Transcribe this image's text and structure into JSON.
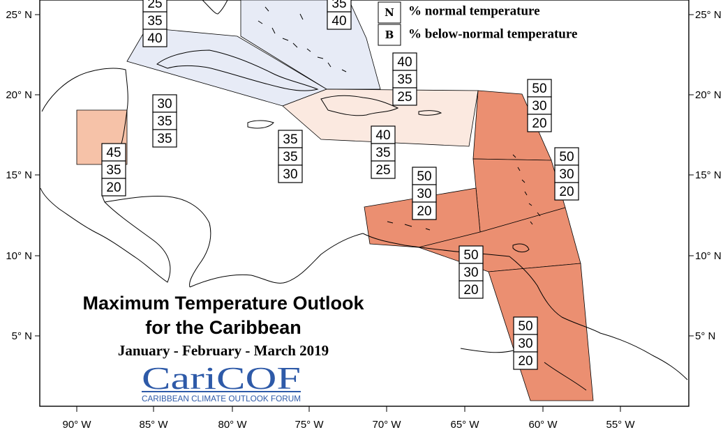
{
  "title": {
    "line1": "Maximum Temperature Outlook",
    "line2": "for the Caribbean",
    "period": "January - February - March 2019"
  },
  "logo": {
    "name": "CariCOF",
    "subtitle": "CARIBBEAN CLIMATE OUTLOOK FORUM"
  },
  "legend": [
    {
      "letter": "N",
      "text": "% normal temperature"
    },
    {
      "letter": "B",
      "text": "% below-normal temperature"
    }
  ],
  "axes": {
    "x_ticks": [
      "90° W",
      "85° W",
      "80° W",
      "75° W",
      "70° W",
      "65° W",
      "60° W",
      "55° W"
    ],
    "y_ticks": [
      "25° N",
      "20° N",
      "15° N",
      "10° N",
      "5° N"
    ]
  },
  "colors": {
    "blue_region": "#e7ebf6",
    "light_peach_region": "#fbe9e0",
    "peach_region": "#f6c2a8",
    "red_region": "#eb8f71",
    "logo_blue": "#2e5aa8"
  },
  "probability_stacks": [
    {
      "id": "bahamas-west",
      "values": [
        "25",
        "35",
        "40"
      ]
    },
    {
      "id": "bahamas-east",
      "values": [
        "35",
        "40"
      ]
    },
    {
      "id": "cuba-central",
      "values": [
        "30",
        "35",
        "35"
      ]
    },
    {
      "id": "hispaniola-north",
      "values": [
        "40",
        "35",
        "25"
      ]
    },
    {
      "id": "belize",
      "values": [
        "45",
        "35",
        "20"
      ]
    },
    {
      "id": "jamaica",
      "values": [
        "35",
        "35",
        "30"
      ]
    },
    {
      "id": "hispaniola-south",
      "values": [
        "40",
        "35",
        "25"
      ]
    },
    {
      "id": "leeward-islands",
      "values": [
        "50",
        "30",
        "20"
      ]
    },
    {
      "id": "windward-north",
      "values": [
        "50",
        "30",
        "20"
      ]
    },
    {
      "id": "abc-islands",
      "values": [
        "50",
        "30",
        "20"
      ]
    },
    {
      "id": "trinidad",
      "values": [
        "50",
        "30",
        "20"
      ]
    },
    {
      "id": "guianas",
      "values": [
        "50",
        "30",
        "20"
      ]
    }
  ]
}
